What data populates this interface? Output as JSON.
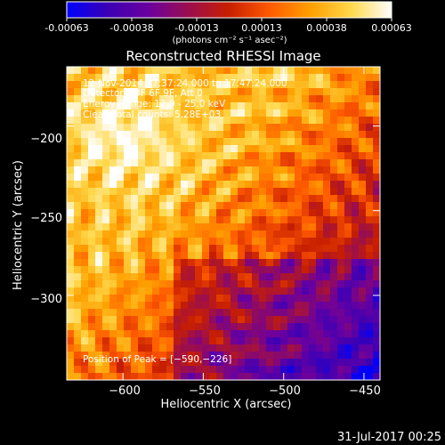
{
  "colorbar": {
    "tick_labels": [
      "-0.00063",
      "-0.00038",
      "-0.00013",
      "0.00013",
      "0.00038",
      "0.00063"
    ],
    "units_label": "(photons cm⁻² s⁻¹ asec⁻²)",
    "stops": [
      "#0000ff",
      "#3a00b4",
      "#6a00a0",
      "#9b0e4e",
      "#c81f00",
      "#ff5a00",
      "#ffa000",
      "#ffd84a",
      "#ffffff"
    ]
  },
  "chart_data": {
    "type": "heatmap",
    "title": "Reconstructed RHESSI Image",
    "xlabel": "Heliocentric X (arcsec)",
    "ylabel": "Heliocentric Y (arcsec)",
    "xlim": [
      -635,
      -440
    ],
    "ylim": [
      -350,
      -165
    ],
    "x_ticks": [
      -600,
      -550,
      -500,
      -450
    ],
    "y_ticks": [
      -200,
      -250,
      -300
    ],
    "x_tick_labels": [
      "−600",
      "−550",
      "−500",
      "−450"
    ],
    "y_tick_labels": [
      "−200",
      "−250",
      "−300"
    ],
    "value_range": [
      -0.00063,
      0.00063
    ],
    "peak": [
      -590,
      -226
    ],
    "annotations": {
      "time": "12-Nov-2014 17:37:24.000 to 17:47:24.000",
      "detectors": "Detectors: 3F 6F 9F, Att 0",
      "energy": "Energy Range: 12.0 - 25.0 keV",
      "method": "Clean     Total counts: 5.28E+03",
      "peak_label": "Position of Peak = [−590,−226]"
    }
  },
  "footer": {
    "date": "31-Jul-2017 00:25"
  }
}
